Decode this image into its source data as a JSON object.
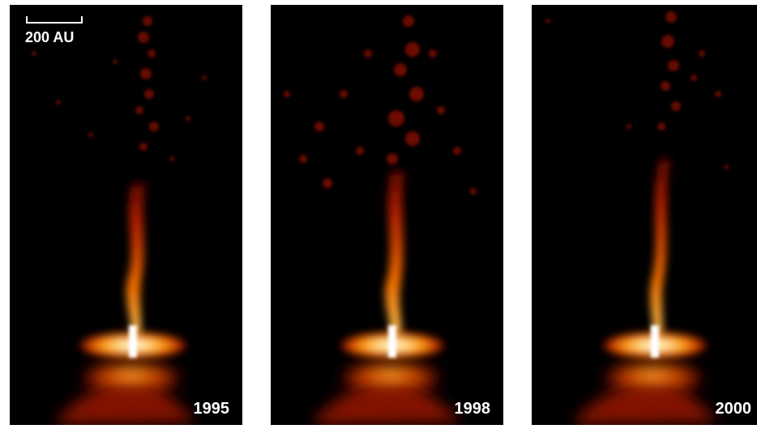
{
  "scale_bar": {
    "label": "200 AU"
  },
  "panels": [
    {
      "year": "1995"
    },
    {
      "year": "1998"
    },
    {
      "year": "2000"
    }
  ],
  "colors": {
    "background": "#000000",
    "glow_core": "#fff4c8",
    "glow_mid": "#ff9a10",
    "glow_outer": "#8a0a00"
  }
}
